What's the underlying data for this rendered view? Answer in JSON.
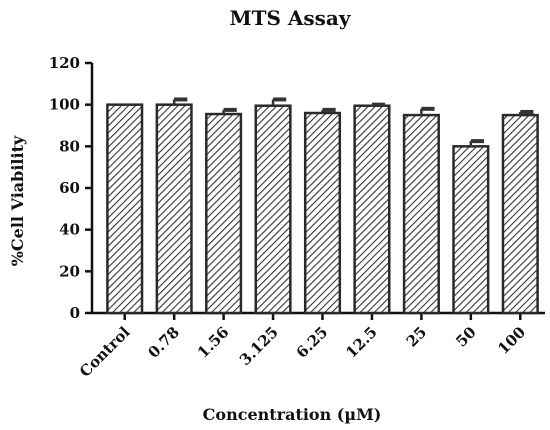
{
  "chart_data": {
    "type": "bar",
    "title": "MTS Assay",
    "xlabel": "Concentration (µM)",
    "ylabel": "%Cell Viability",
    "ylim": [
      0,
      120
    ],
    "yticks": [
      0,
      20,
      40,
      60,
      80,
      100,
      120
    ],
    "grid": false,
    "legend": "none",
    "categories": [
      "Control",
      "0.78",
      "1.56",
      "3.125",
      "6.25",
      "12.5",
      "25",
      "50",
      "100"
    ],
    "values": [
      100,
      100,
      95.5,
      99.5,
      96,
      99.5,
      95,
      80,
      95
    ],
    "errors": [
      0,
      2.5,
      2,
      3,
      1.5,
      0.5,
      3,
      2.5,
      1.5
    ],
    "bar_pattern": "diagonal-hatch",
    "colors": {
      "bar_stroke": "#2a2a2a",
      "hatch": "#333333",
      "axis": "#111111"
    }
  }
}
